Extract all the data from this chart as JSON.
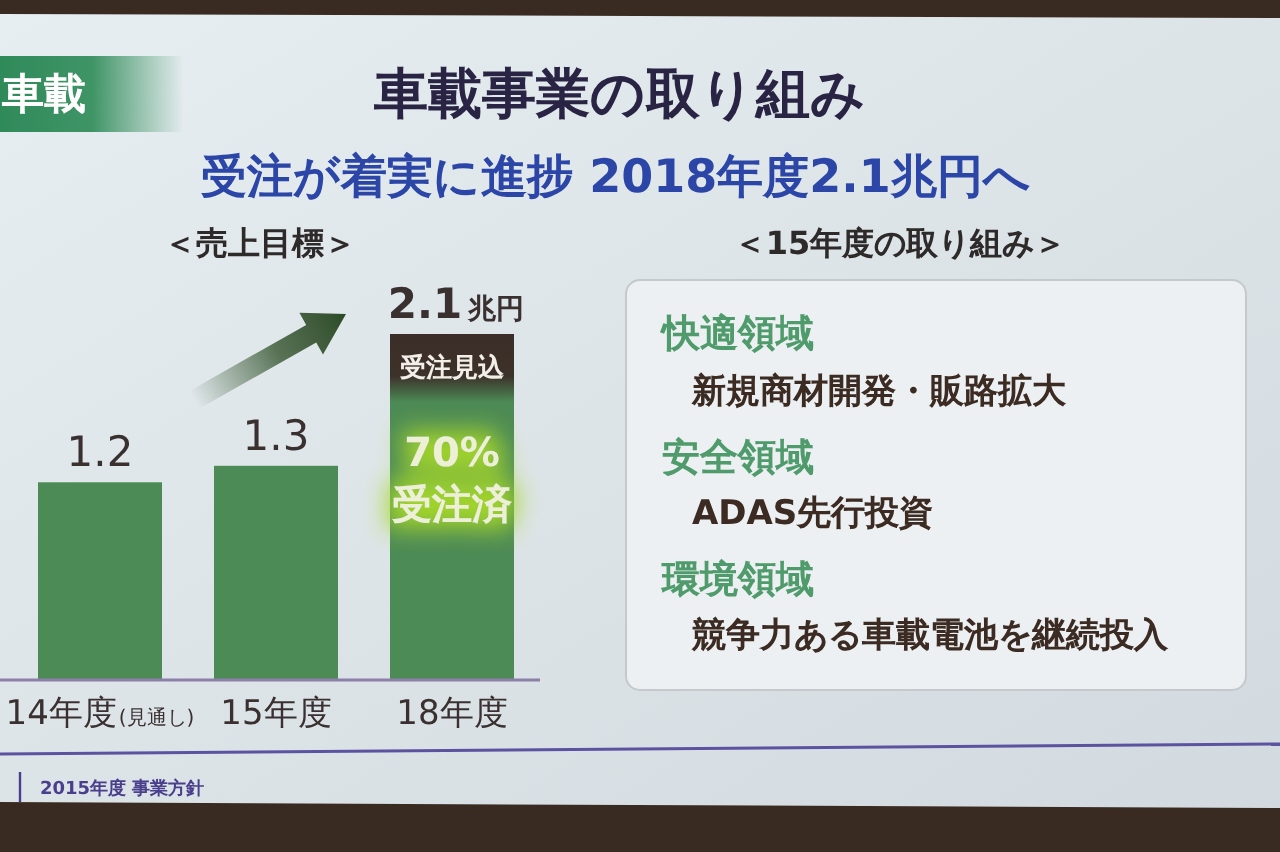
{
  "chart_data": [
    {
      "type": "bar",
      "title": "車載事業の取り組み",
      "subtitle": "受注が着実に進捗 2018年度2.1兆円へ",
      "categories": [
        "14年度(見通し)",
        "15年度",
        "18年度"
      ],
      "values": [
        1.2,
        1.3,
        2.1
      ],
      "value_labels": [
        "1.2",
        "1.3",
        "2.1兆円"
      ],
      "colors": [
        "#4c8a56",
        "#4c8a56",
        "#4c8a56"
      ],
      "annotations": [
        "車載",
        "＜売上目標＞",
        "受注見込",
        "70%\n受注済",
        "2015年度 事業方針"
      ]
    },
    {
      "type": "other",
      "title": "＜15年度の取り組み＞",
      "annotations": [
        "快適領域",
        "新規商材開発・販路拡大",
        "安全領域",
        "ADAS先行投資",
        "環境領域",
        "競争力ある車載電池を継続投入"
      ]
    }
  ]
}
